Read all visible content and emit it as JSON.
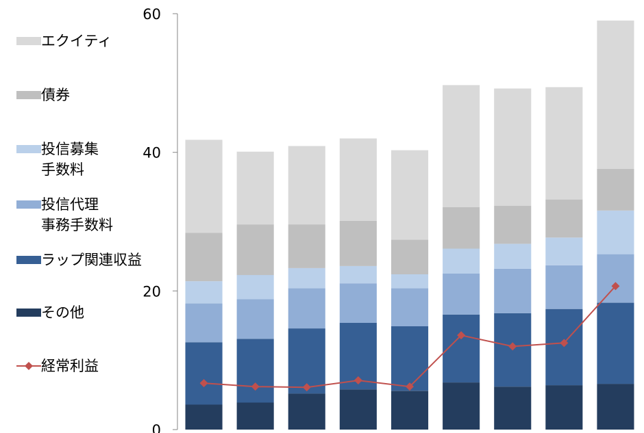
{
  "chart_data": {
    "type": "bar",
    "stacked": true,
    "categories": [
      "",
      "",
      "",
      "",
      "",
      "",
      "",
      "",
      ""
    ],
    "ylim": [
      0,
      60
    ],
    "yticks": [
      0,
      20,
      40,
      60
    ],
    "ytick_labels": [
      "0",
      "20",
      "40",
      "60"
    ],
    "legend_position": "left",
    "grid": false,
    "series": [
      {
        "name": "その他",
        "type": "bar",
        "color": "#243d5e",
        "values": [
          3.6,
          3.9,
          5.2,
          5.8,
          5.6,
          6.8,
          6.2,
          6.4,
          6.6
        ]
      },
      {
        "name": "ラップ関連収益",
        "type": "bar",
        "color": "#365f94",
        "values": [
          9.0,
          9.2,
          9.4,
          9.6,
          9.3,
          9.8,
          10.6,
          11.0,
          11.7
        ]
      },
      {
        "name": "投信代理\n事務手数料",
        "type": "bar",
        "color": "#91aed6",
        "values": [
          5.6,
          5.7,
          5.8,
          5.7,
          5.5,
          5.9,
          6.4,
          6.3,
          7.0
        ]
      },
      {
        "name": "投信募集\n手数料",
        "type": "bar",
        "color": "#bad0ea",
        "values": [
          3.2,
          3.5,
          2.9,
          2.5,
          2.0,
          3.6,
          3.6,
          4.0,
          6.3
        ]
      },
      {
        "name": "債券",
        "type": "bar",
        "color": "#bfbfbf",
        "values": [
          7.0,
          7.3,
          6.3,
          6.5,
          5.0,
          6.0,
          5.5,
          5.5,
          6.0
        ]
      },
      {
        "name": "エクイティ",
        "type": "bar",
        "color": "#d9d9d9",
        "values": [
          13.4,
          10.5,
          11.3,
          11.9,
          12.9,
          17.6,
          16.9,
          16.2,
          21.4
        ]
      },
      {
        "name": "経常利益",
        "type": "line",
        "color": "#c0504d",
        "values": [
          6.7,
          6.2,
          6.1,
          7.1,
          6.2,
          13.6,
          12.0,
          12.5,
          20.7
        ]
      }
    ]
  }
}
